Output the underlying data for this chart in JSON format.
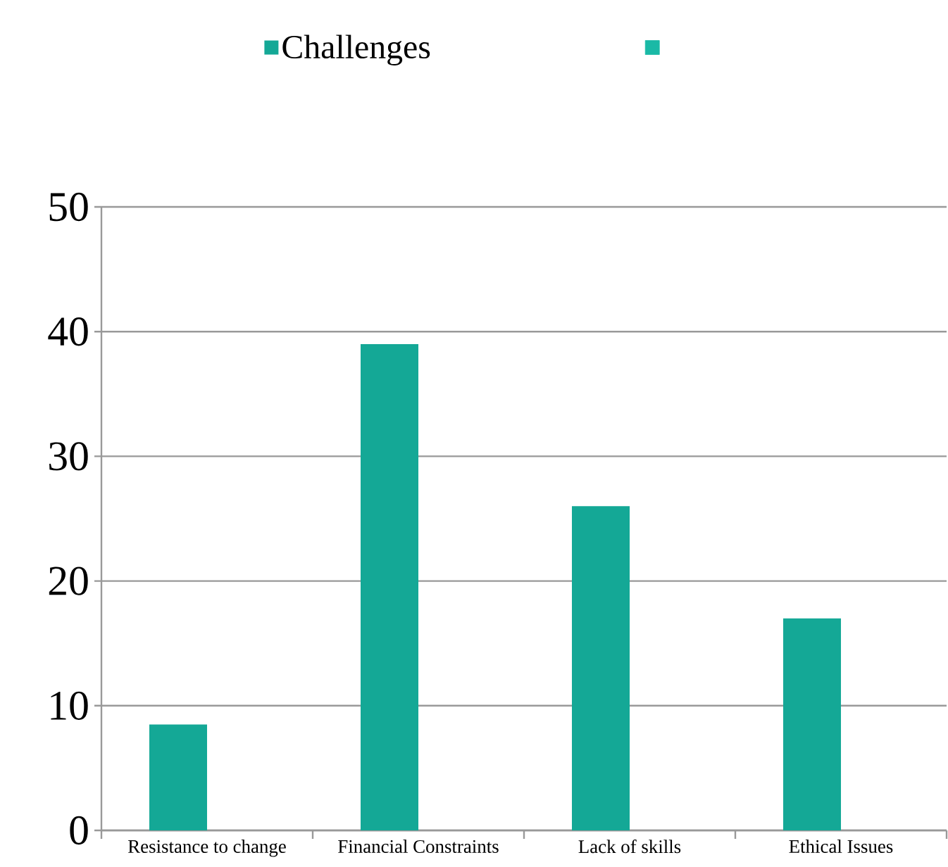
{
  "chart_data": {
    "type": "bar",
    "categories": [
      "Resistance to change",
      "Financial Constraints",
      "Lack of skills",
      "Ethical Issues"
    ],
    "series": [
      {
        "name": "Challenges",
        "color": "#14a896",
        "values": [
          8.5,
          39,
          26,
          17
        ]
      },
      {
        "color": "#1ab9a6",
        "values": [
          null,
          null,
          null,
          null
        ]
      }
    ],
    "ylim": [
      0,
      50
    ],
    "yticks": [
      0,
      10,
      20,
      30,
      40,
      50
    ],
    "grid": "y",
    "legend": "top"
  }
}
